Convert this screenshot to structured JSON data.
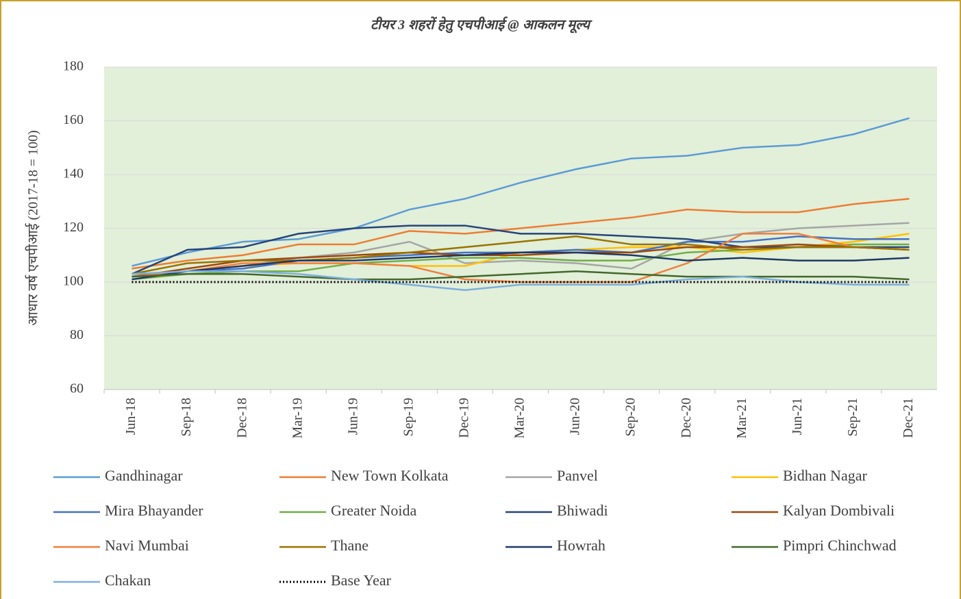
{
  "chart_data": {
    "type": "line",
    "title": "टीयर 3 शहरों हेतु एचपीआई @ आकलन मूल्य",
    "y_label": "आधार वर्ष एचपीआई (2017-18 = 100)",
    "categories": [
      "Jun-18",
      "Sep-18",
      "Dec-18",
      "Mar-19",
      "Jun-19",
      "Sep-19",
      "Dec-19",
      "Mar-20",
      "Jun-20",
      "Sep-20",
      "Dec-20",
      "Mar-21",
      "Jun-21",
      "Sep-21",
      "Dec-21"
    ],
    "ylim": [
      60,
      180
    ],
    "yticks": [
      60,
      80,
      100,
      120,
      140,
      160,
      180
    ],
    "grid": true,
    "plot_background": "#e2efd9",
    "series": [
      {
        "name": "Gandhinagar",
        "color": "#5b9bd5",
        "values": [
          106,
          111,
          115,
          116,
          120,
          127,
          131,
          137,
          142,
          146,
          147,
          150,
          151,
          155,
          161
        ]
      },
      {
        "name": "New Town Kolkata",
        "color": "#ed7d31",
        "values": [
          105,
          108,
          110,
          114,
          114,
          119,
          118,
          120,
          122,
          124,
          127,
          126,
          126,
          129,
          131
        ]
      },
      {
        "name": "Panvel",
        "color": "#a5a5a5",
        "values": [
          103,
          104,
          106,
          109,
          111,
          115,
          107,
          108,
          107,
          105,
          115,
          118,
          120,
          121,
          122
        ]
      },
      {
        "name": "Bidhan Nagar",
        "color": "#ffc000",
        "values": [
          102,
          104,
          106,
          107,
          107,
          106,
          106,
          111,
          112,
          113,
          113,
          111,
          113,
          115,
          118
        ]
      },
      {
        "name": "Mira Bhayander",
        "color": "#4472c4",
        "values": [
          102,
          104,
          105,
          108,
          109,
          110,
          111,
          111,
          112,
          111,
          115,
          115,
          117,
          116,
          116
        ]
      },
      {
        "name": "Greater Noida",
        "color": "#70ad47",
        "values": [
          101,
          103,
          104,
          104,
          107,
          108,
          109,
          109,
          108,
          108,
          111,
          112,
          113,
          114,
          114
        ]
      },
      {
        "name": "Bhiwadi",
        "color": "#264478",
        "values": [
          103,
          112,
          113,
          118,
          120,
          121,
          121,
          118,
          118,
          117,
          116,
          113,
          113,
          113,
          113
        ]
      },
      {
        "name": "Kalyan Dombivali",
        "color": "#9e480e",
        "values": [
          102,
          105,
          108,
          109,
          110,
          111,
          110,
          110,
          111,
          111,
          113,
          113,
          114,
          113,
          112
        ]
      },
      {
        "name": "Navi Mumbai",
        "color": "#f07f3c",
        "values": [
          102,
          104,
          107,
          107,
          107,
          106,
          101,
          100,
          100,
          100,
          107,
          118,
          118,
          113,
          112
        ]
      },
      {
        "name": "Thane",
        "color": "#997300",
        "values": [
          103,
          107,
          108,
          108,
          109,
          111,
          113,
          115,
          117,
          114,
          114,
          112,
          113,
          113,
          112
        ]
      },
      {
        "name": "Howrah",
        "color": "#1f3864",
        "values": [
          101,
          104,
          106,
          108,
          108,
          109,
          110,
          111,
          111,
          110,
          108,
          109,
          108,
          108,
          109
        ]
      },
      {
        "name": "Pimpri Chinchwad",
        "color": "#43682b",
        "values": [
          102,
          103,
          103,
          102,
          101,
          101,
          102,
          103,
          104,
          103,
          102,
          102,
          102,
          102,
          101
        ]
      },
      {
        "name": "Chakan",
        "color": "#7cafdd",
        "values": [
          103,
          104,
          104,
          103,
          101,
          99,
          97,
          99,
          99,
          99,
          101,
          102,
          100,
          99,
          99
        ]
      },
      {
        "name": "Base Year",
        "color": "#000000",
        "style": "dotted",
        "values": [
          100,
          100,
          100,
          100,
          100,
          100,
          100,
          100,
          100,
          100,
          100,
          100,
          100,
          100,
          100
        ]
      }
    ]
  }
}
